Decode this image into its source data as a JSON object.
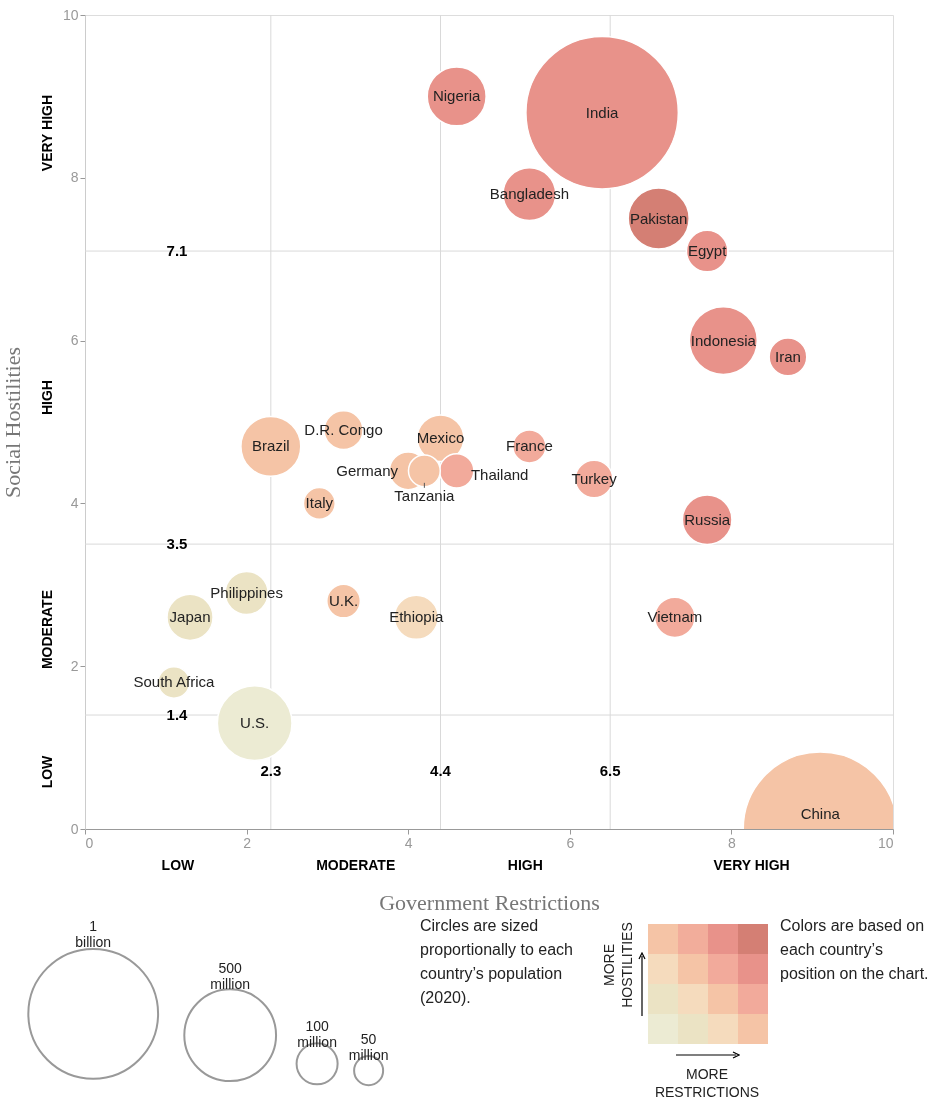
{
  "chart_data": {
    "type": "bubble",
    "xlabel": "Government Restrictions",
    "ylabel": "Social Hostilities",
    "xlim": [
      0,
      10
    ],
    "ylim": [
      0,
      10
    ],
    "xticks": [
      0,
      2,
      4,
      6,
      8,
      10
    ],
    "yticks": [
      0,
      2,
      4,
      6,
      8,
      10
    ],
    "grid": false,
    "legend": "bottom left",
    "size_legend": [
      {
        "value": 1000,
        "label": "1 billion"
      },
      {
        "value": 500,
        "label": "500 million"
      },
      {
        "value": 100,
        "label": "100 million"
      },
      {
        "value": 50,
        "label": "50 million"
      }
    ],
    "ref_lines": [
      {
        "axis": "x",
        "value": 2.3,
        "label": "2.3"
      },
      {
        "axis": "x",
        "value": 4.4,
        "label": "4.4"
      },
      {
        "axis": "x",
        "value": 6.5,
        "label": "6.5"
      },
      {
        "axis": "y",
        "value": 1.4,
        "label": "1.4"
      },
      {
        "axis": "y",
        "value": 3.5,
        "label": "3.5"
      },
      {
        "axis": "y",
        "value": 7.1,
        "label": "7.1"
      }
    ],
    "annotations": [
      "Circles are sized proportionally to each country’s population (2020).",
      "MORE HOSTILITIES",
      "MORE RESTRICTIONS",
      "Colors are based on each country’s position on the chart.",
      "LOW",
      "MODERATE",
      "HIGH",
      "VERY HIGH",
      "LOW",
      "MODERATE",
      "HIGH",
      "VERY HIGH"
    ],
    "series": [
      {
        "name": "Nigeria",
        "color": "#e8928a",
        "x": [
          4.6
        ],
        "values": [
          9.0
        ],
        "sizes": [
          206
        ]
      },
      {
        "name": "India",
        "color": "#e8928a",
        "x": [
          6.4
        ],
        "values": [
          8.8
        ],
        "sizes": [
          1380
        ]
      },
      {
        "name": "Bangladesh",
        "color": "#e8928a",
        "x": [
          5.5
        ],
        "values": [
          7.8
        ],
        "sizes": [
          165
        ]
      },
      {
        "name": "Pakistan",
        "color": "#d47f74",
        "x": [
          7.1
        ],
        "values": [
          7.5
        ],
        "sizes": [
          221
        ]
      },
      {
        "name": "Egypt",
        "color": "#e8928a",
        "x": [
          7.7
        ],
        "values": [
          7.1
        ],
        "sizes": [
          102
        ]
      },
      {
        "name": "Indonesia",
        "color": "#e8928a",
        "x": [
          7.9
        ],
        "values": [
          6.0
        ],
        "sizes": [
          274
        ]
      },
      {
        "name": "Iran",
        "color": "#e8928a",
        "x": [
          8.7
        ],
        "values": [
          5.8
        ],
        "sizes": [
          84
        ]
      },
      {
        "name": "Brazil",
        "color": "#f5c4a6",
        "x": [
          2.3
        ],
        "values": [
          4.7
        ],
        "sizes": [
          213
        ]
      },
      {
        "name": "D.R. Congo",
        "color": "#f5c4a6",
        "x": [
          3.2
        ],
        "values": [
          4.9
        ],
        "sizes": [
          90
        ]
      },
      {
        "name": "Mexico",
        "color": "#f5c4a6",
        "x": [
          4.4
        ],
        "values": [
          4.8
        ],
        "sizes": [
          129
        ]
      },
      {
        "name": "France",
        "color": "#f2aa9b",
        "x": [
          5.5
        ],
        "values": [
          4.7
        ],
        "sizes": [
          65
        ]
      },
      {
        "name": "Germany",
        "color": "#f5c4a6",
        "x": [
          4.0
        ],
        "values": [
          4.4
        ],
        "sizes": [
          84
        ]
      },
      {
        "name": "Tanzania",
        "color": "#f5c4a6",
        "x": [
          4.2
        ],
        "values": [
          4.4
        ],
        "sizes": [
          60
        ]
      },
      {
        "name": "Thailand",
        "color": "#f2aa9b",
        "x": [
          4.6
        ],
        "values": [
          4.4
        ],
        "sizes": [
          70
        ]
      },
      {
        "name": "Turkey",
        "color": "#f2aa9b",
        "x": [
          6.3
        ],
        "values": [
          4.3
        ],
        "sizes": [
          84
        ]
      },
      {
        "name": "Italy",
        "color": "#f5c4a6",
        "x": [
          2.9
        ],
        "values": [
          4.0
        ],
        "sizes": [
          60
        ]
      },
      {
        "name": "Russia",
        "color": "#e8928a",
        "x": [
          7.7
        ],
        "values": [
          3.8
        ],
        "sizes": [
          146
        ]
      },
      {
        "name": "Philippines",
        "color": "#ebe3c4",
        "x": [
          2.0
        ],
        "values": [
          2.9
        ],
        "sizes": [
          110
        ]
      },
      {
        "name": "U.K.",
        "color": "#f5c4a6",
        "x": [
          3.2
        ],
        "values": [
          2.8
        ],
        "sizes": [
          67
        ]
      },
      {
        "name": "Japan",
        "color": "#ebe3c4",
        "x": [
          1.3
        ],
        "values": [
          2.6
        ],
        "sizes": [
          126
        ]
      },
      {
        "name": "Ethiopia",
        "color": "#f5dbbd",
        "x": [
          4.1
        ],
        "values": [
          2.6
        ],
        "sizes": [
          115
        ]
      },
      {
        "name": "Vietnam",
        "color": "#f2aa9b",
        "x": [
          7.3
        ],
        "values": [
          2.6
        ],
        "sizes": [
          97
        ]
      },
      {
        "name": "South Africa",
        "color": "#ebe3c4",
        "x": [
          1.1
        ],
        "values": [
          1.8
        ],
        "sizes": [
          59
        ]
      },
      {
        "name": "U.S.",
        "color": "#ecebd3",
        "x": [
          2.1
        ],
        "values": [
          1.3
        ],
        "sizes": [
          331
        ]
      },
      {
        "name": "China",
        "color": "#f5c4a6",
        "x": [
          9.1
        ],
        "values": [
          0
        ],
        "sizes": [
          1410
        ]
      }
    ]
  }
}
